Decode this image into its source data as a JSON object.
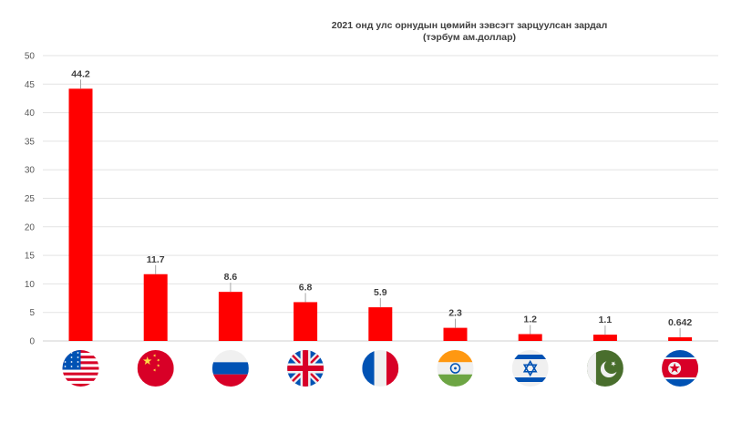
{
  "chart_data": {
    "type": "bar",
    "title_line1": "2021 онд улс орнудын цөмийн зэвсэгт зарцуулсан зардал",
    "title_line2": "(тэрбум ам.доллар)",
    "categories": [
      "США",
      "Хятад",
      "Орос",
      "Их Британи",
      "Франц",
      "Энэтхэг",
      "Израиль",
      "Пакистан",
      "Хойд Солонгос"
    ],
    "values": [
      44.2,
      11.7,
      8.6,
      6.8,
      5.9,
      2.3,
      1.2,
      1.1,
      0.642
    ],
    "data_labels": [
      "44.2",
      "11.7",
      "8.6",
      "6.8",
      "5.9",
      "2.3",
      "1.2",
      "1.1",
      "0.642"
    ],
    "y_ticks": [
      "0",
      "5",
      "10",
      "15",
      "20",
      "25",
      "30",
      "35",
      "40",
      "45",
      "50"
    ],
    "ylim": [
      0,
      50
    ],
    "grid": true,
    "bar_color": "#ff0000",
    "flags": [
      "usa-flag-icon",
      "china-flag-icon",
      "russia-flag-icon",
      "uk-flag-icon",
      "france-flag-icon",
      "india-flag-icon",
      "israel-flag-icon",
      "pakistan-flag-icon",
      "north-korea-flag-icon"
    ]
  }
}
